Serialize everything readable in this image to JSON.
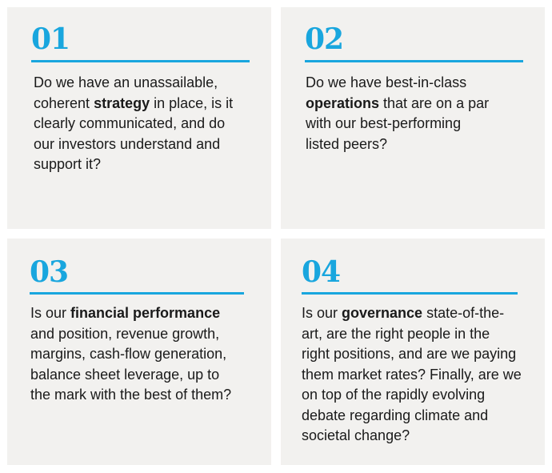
{
  "cards": [
    {
      "number": "01",
      "keyword": "strategy",
      "lines": [
        {
          "pre": "Do we have an unassailable,",
          "bold": "",
          "post": ""
        },
        {
          "pre": "coherent ",
          "bold": "strategy",
          "post": " in place, is it"
        },
        {
          "pre": "clearly communicated, and do",
          "bold": "",
          "post": ""
        },
        {
          "pre": "our investors understand and",
          "bold": "",
          "post": ""
        },
        {
          "pre": "support it?",
          "bold": "",
          "post": ""
        }
      ]
    },
    {
      "number": "02",
      "keyword": "operations",
      "lines": [
        {
          "pre": "Do we have best-in-class",
          "bold": "",
          "post": ""
        },
        {
          "pre": "",
          "bold": "operations",
          "post": " that are on a par"
        },
        {
          "pre": "with our best-performing",
          "bold": "",
          "post": ""
        },
        {
          "pre": "listed peers?",
          "bold": "",
          "post": ""
        }
      ]
    },
    {
      "number": "03",
      "keyword": "financial performance",
      "lines": [
        {
          "pre": "Is our ",
          "bold": "financial performance",
          "post": ""
        },
        {
          "pre": "and position, revenue growth,",
          "bold": "",
          "post": ""
        },
        {
          "pre": "margins, cash-flow generation,",
          "bold": "",
          "post": ""
        },
        {
          "pre": "balance sheet leverage, up to",
          "bold": "",
          "post": ""
        },
        {
          "pre": "the mark with the best of them?",
          "bold": "",
          "post": ""
        }
      ]
    },
    {
      "number": "04",
      "keyword": "governance",
      "lines": [
        {
          "pre": "Is our ",
          "bold": "governance",
          "post": " state-of-the-"
        },
        {
          "pre": "art, are the right people in the",
          "bold": "",
          "post": ""
        },
        {
          "pre": "right positions, and are we paying",
          "bold": "",
          "post": ""
        },
        {
          "pre": "them market rates? Finally, are we",
          "bold": "",
          "post": ""
        },
        {
          "pre": "on top of the rapidly evolving",
          "bold": "",
          "post": ""
        },
        {
          "pre": "debate regarding climate and",
          "bold": "",
          "post": ""
        },
        {
          "pre": "societal change?",
          "bold": "",
          "post": ""
        }
      ]
    }
  ],
  "colors": {
    "accent": "#19a6de",
    "card_bg": "#f2f1ef",
    "text": "#1a1a1a"
  }
}
